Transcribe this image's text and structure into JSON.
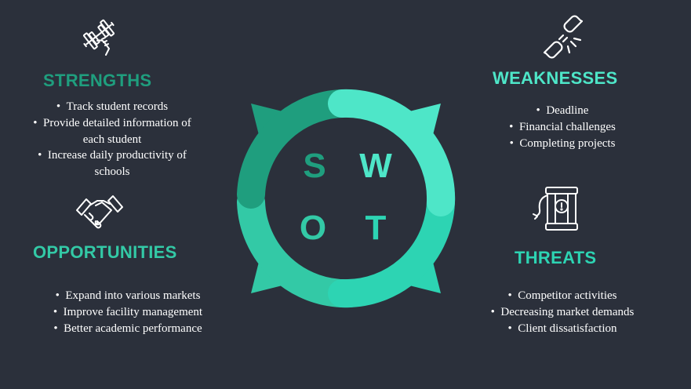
{
  "colors": {
    "background": "#2b303b",
    "strengths": "#1f9e7e",
    "weaknesses": "#4ee6c8",
    "opportunities": "#33c9a6",
    "threats": "#2dd4b3",
    "text": "#ffffff"
  },
  "strengths": {
    "icon": "dumbbell-hand-icon",
    "title": "STRENGTHS",
    "items": [
      "Track  student records",
      "Provide detailed information of each student",
      "Increase daily productivity of schools"
    ]
  },
  "weaknesses": {
    "icon": "broken-chain-icon",
    "title": "WEAKNESSES",
    "items": [
      "Deadline",
      "Financial challenges",
      "Completing projects"
    ]
  },
  "opportunities": {
    "icon": "handshake-icon",
    "title": "OPPORTUNITIES",
    "items": [
      "Expand into various markets",
      "Improve facility management",
      "Better academic performance"
    ]
  },
  "threats": {
    "icon": "dynamite-bomb-icon",
    "title": "THREATS",
    "items": [
      "Competitor activities",
      "Decreasing market demands",
      "Client dissatisfaction"
    ]
  },
  "wheel": {
    "letters": [
      "S",
      "W",
      "O",
      "T"
    ]
  }
}
